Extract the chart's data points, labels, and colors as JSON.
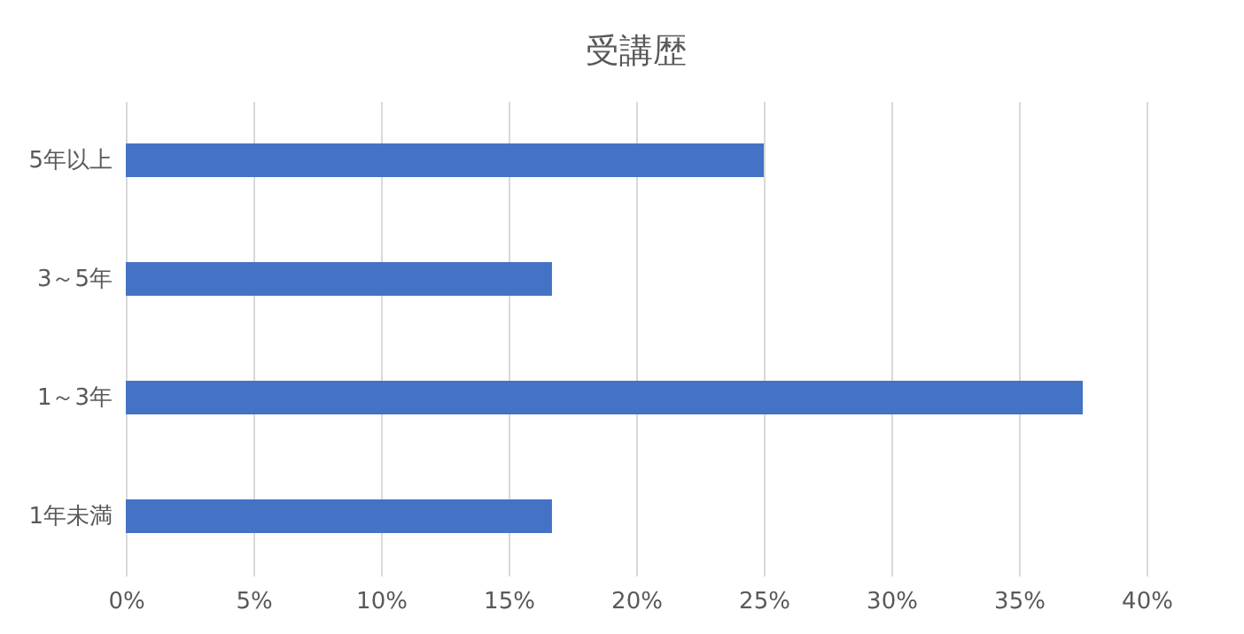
{
  "chart_data": {
    "type": "bar",
    "orientation": "horizontal",
    "title": "受講歴",
    "categories": [
      "5年以上",
      "3～5年",
      "1～3年",
      "1年未満"
    ],
    "values": [
      25,
      16.7,
      37.5,
      16.7
    ],
    "color": "#4472c4",
    "xlim": [
      0,
      40
    ],
    "xticks": [
      {
        "value": 0,
        "label": "0%"
      },
      {
        "value": 5,
        "label": "5%"
      },
      {
        "value": 10,
        "label": "10%"
      },
      {
        "value": 15,
        "label": "15%"
      },
      {
        "value": 20,
        "label": "20%"
      },
      {
        "value": 25,
        "label": "25%"
      },
      {
        "value": 30,
        "label": "30%"
      },
      {
        "value": 35,
        "label": "35%"
      },
      {
        "value": 40,
        "label": "40%"
      }
    ],
    "grid": "x"
  }
}
